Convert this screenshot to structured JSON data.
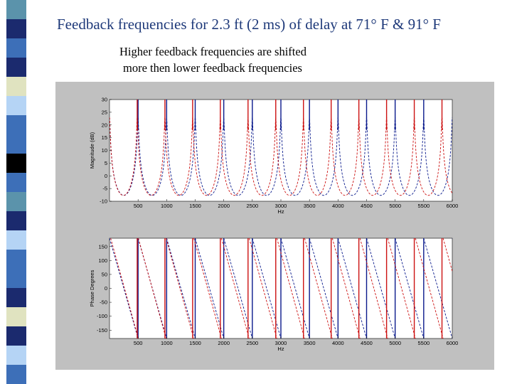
{
  "slide": {
    "title": "Feedback frequencies for 2.3 ft (2 ms) of delay at 71° F & 91° F",
    "subtitle_lines": [
      "Higher feedback frequencies are shifted",
      "more then lower feedback frequencies"
    ]
  },
  "sidebar": {
    "colors": [
      "#5b93ab",
      "#1b2a6e",
      "#3d6fb8",
      "#1b2a6e",
      "#e0e3c0",
      "#b5d4f5",
      "#3d6fb8",
      "#3d6fb8",
      "#000000",
      "#3d6fb8",
      "#5b93ab",
      "#1b2a6e",
      "#b5d4f5",
      "#3d6fb8",
      "#3d6fb8",
      "#1b2a6e",
      "#e0e3c0",
      "#1b2a6e",
      "#b5d4f5",
      "#3d6fb8"
    ]
  },
  "chart_data": [
    {
      "type": "line",
      "title": "",
      "xlabel": "Hz",
      "ylabel": "Magnitude (dB)",
      "xlim": [
        0,
        6000
      ],
      "ylim": [
        -10,
        30
      ],
      "x_ticks": [
        "500",
        "1000",
        "1500",
        "2000",
        "2500",
        "3000",
        "3500",
        "4000",
        "4500",
        "5000",
        "5500",
        "6000"
      ],
      "y_ticks": [
        "-10",
        "-5",
        "0",
        "5",
        "10",
        "15",
        "20",
        "25",
        "30"
      ],
      "series": [
        {
          "color": "#0a1a8c",
          "peak_spacing_hz": 500,
          "peak_top": 30,
          "trough": -6.5
        },
        {
          "color": "#cc1111",
          "peak_spacing_hz": 485,
          "peak_top": 30,
          "trough": -6.5
        }
      ]
    },
    {
      "type": "line",
      "title": "",
      "xlabel": "Hz",
      "ylabel": "Phase Degrees",
      "xlim": [
        0,
        6000
      ],
      "ylim": [
        -180,
        180
      ],
      "x_ticks": [
        "500",
        "1000",
        "1500",
        "2000",
        "2500",
        "3000",
        "3500",
        "4000",
        "4500",
        "5000",
        "5500",
        "6000"
      ],
      "y_ticks": [
        "-150",
        "-100",
        "-50",
        "0",
        "50",
        "100",
        "150"
      ],
      "series": [
        {
          "color": "#0a1a8c",
          "wrap_period_hz": 500
        },
        {
          "color": "#cc1111",
          "wrap_period_hz": 485
        }
      ]
    }
  ]
}
